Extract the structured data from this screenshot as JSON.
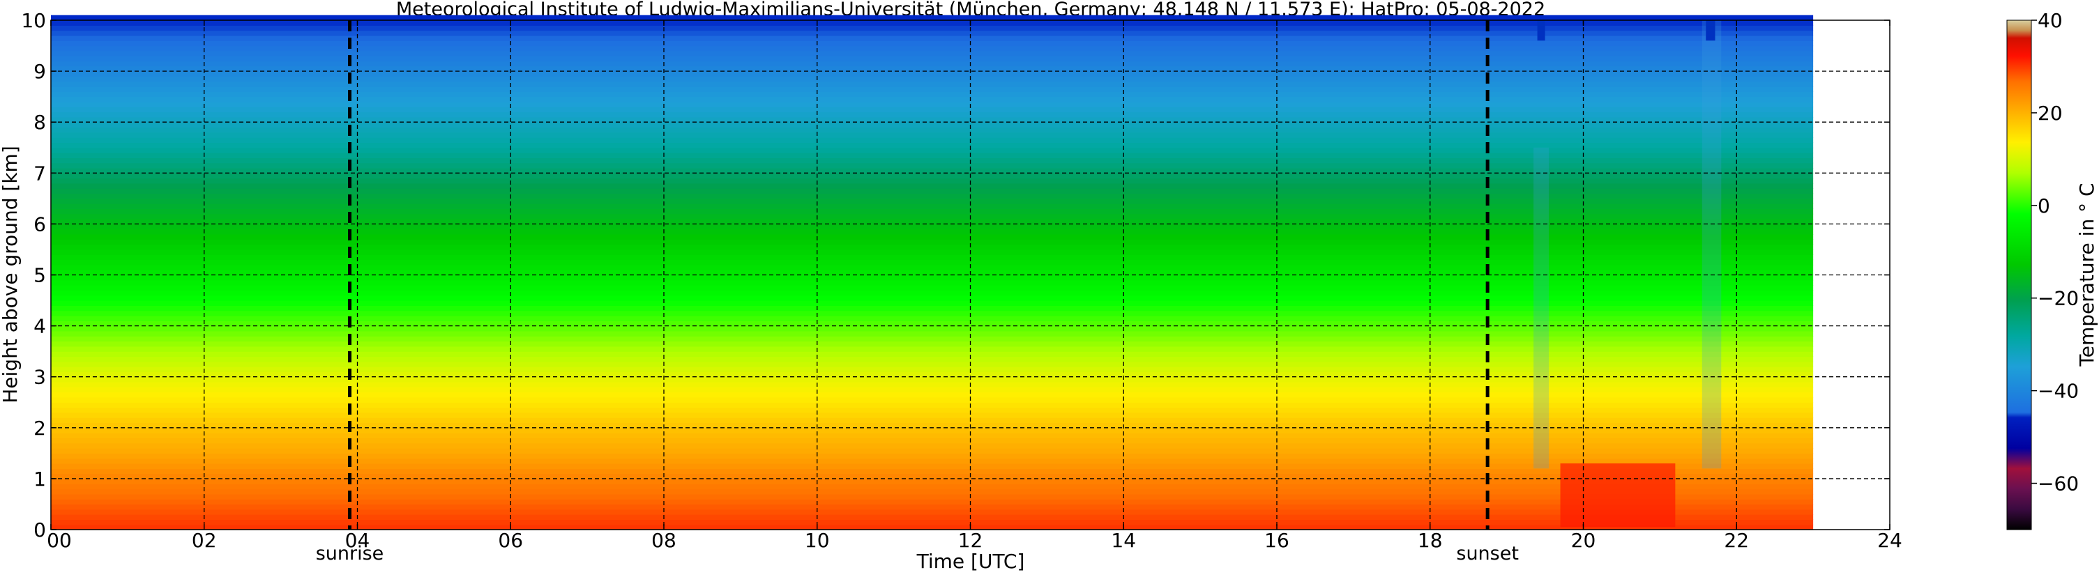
{
  "chart_data": {
    "type": "heatmap",
    "title": "Meteorological Institute of Ludwig-Maximilians-Universität (München, Germany; 48.148 N / 11.573 E):    HatPro: 05-08-2022",
    "xlabel": "Time [UTC]",
    "ylabel": "Height above ground [km]",
    "xlim": [
      0,
      24
    ],
    "ylim": [
      0,
      10
    ],
    "x_ticks": [
      "00",
      "02",
      "04",
      "06",
      "08",
      "10",
      "12",
      "14",
      "16",
      "18",
      "20",
      "22",
      "24"
    ],
    "y_ticks": [
      "0",
      "1",
      "2",
      "3",
      "4",
      "5",
      "6",
      "7",
      "8",
      "9",
      "10"
    ],
    "grid": true,
    "data_extent_hours": [
      0,
      23
    ],
    "events": [
      {
        "label": "sunrise",
        "time_utc": 3.9
      },
      {
        "label": "sunset",
        "time_utc": 18.75
      }
    ],
    "colorbar": {
      "label": "Temperature in ° C",
      "range": [
        -70,
        40
      ],
      "ticks": [
        "40",
        "20",
        "0",
        "−20",
        "−40",
        "−60"
      ]
    },
    "temperature_profile": {
      "height_km": [
        0,
        0.5,
        1,
        1.5,
        2,
        2.5,
        3,
        3.5,
        4,
        4.5,
        5,
        5.5,
        6,
        6.5,
        7,
        7.5,
        8,
        8.5,
        9,
        9.5,
        10
      ],
      "temperature_c": [
        28,
        25,
        22,
        18,
        15,
        11,
        8,
        4,
        0,
        -4,
        -8,
        -12,
        -16,
        -20,
        -24,
        -28,
        -32,
        -36,
        -40,
        -44,
        -48
      ]
    }
  }
}
